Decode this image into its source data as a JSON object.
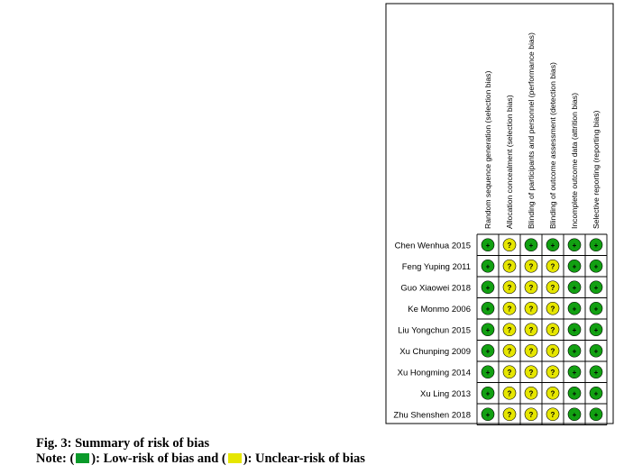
{
  "studies": [
    "Chen Wenhua 2015",
    "Feng Yuping 2011",
    "Guo Xiaowei 2018",
    "Ke Monmo 2006",
    "Liu Yongchun 2015",
    "Xu Chunping 2009",
    "Xu Hongming 2014",
    "Xu Ling 2013",
    "Zhu Shenshen 2018"
  ],
  "domains": [
    "Random sequence generation (selection bias)",
    "Allocation concealment (selection bias)",
    "Blinding of participants and personnel (performance bias)",
    "Blinding of outcome assessment (detection bias)",
    "Incomplete outcome data (attrition bias)",
    "Selective reporting (reporting bias)"
  ],
  "judgements": [
    [
      "+",
      "?",
      "+",
      "+",
      "+",
      "+"
    ],
    [
      "+",
      "?",
      "?",
      "?",
      "+",
      "+"
    ],
    [
      "+",
      "?",
      "?",
      "?",
      "+",
      "+"
    ],
    [
      "+",
      "?",
      "?",
      "?",
      "+",
      "+"
    ],
    [
      "+",
      "?",
      "?",
      "?",
      "+",
      "+"
    ],
    [
      "+",
      "?",
      "?",
      "?",
      "+",
      "+"
    ],
    [
      "+",
      "?",
      "?",
      "?",
      "+",
      "+"
    ],
    [
      "+",
      "?",
      "?",
      "?",
      "+",
      "+"
    ],
    [
      "+",
      "?",
      "?",
      "?",
      "+",
      "+"
    ]
  ],
  "colors": {
    "low": "#12a012",
    "unclear": "#e6e600",
    "low_swatch": "#0a9a2a",
    "unclear_swatch": "#e6e600"
  },
  "caption": {
    "title": "Fig. 3: Summary of risk of bias",
    "note_prefix": "Note: (",
    "note_low": "): Low-risk of bias and (",
    "note_unclear": "): Unclear-risk of bias"
  }
}
